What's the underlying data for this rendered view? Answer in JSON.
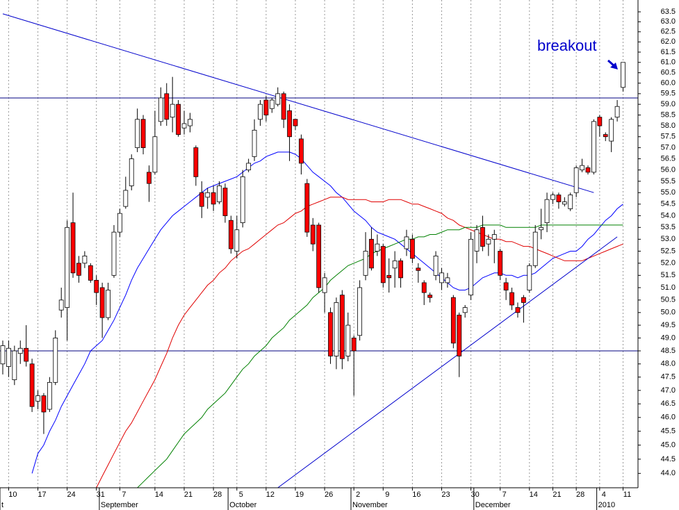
{
  "chart_data": {
    "type": "candlestick",
    "annotation": "breakout",
    "log_scale": true,
    "ylim": [
      43.5,
      64.1
    ],
    "yticks": [
      {
        "value": 44,
        "label": "44.0"
      },
      44.5,
      {
        "value": 45,
        "label": "45.0"
      },
      45.5,
      {
        "value": 46,
        "label": "46.0"
      },
      46.5,
      {
        "value": 47,
        "label": "47.0"
      },
      47.5,
      {
        "value": 48,
        "label": "48.0"
      },
      48.5,
      {
        "value": 49,
        "label": "49.0"
      },
      49.5,
      {
        "value": 50,
        "label": "50.0"
      },
      50.5,
      {
        "value": 51,
        "label": "51.0"
      },
      51.5,
      {
        "value": 52,
        "label": "52.0"
      },
      52.5,
      {
        "value": 53,
        "label": "53.0"
      },
      53.5,
      {
        "value": 54,
        "label": "54.0"
      },
      54.5,
      {
        "value": 55,
        "label": "55.0"
      },
      55.5,
      {
        "value": 56,
        "label": "56.0"
      },
      56.5,
      {
        "value": 57,
        "label": "57.0"
      },
      57.5,
      {
        "value": 58,
        "label": "58.0"
      },
      58.5,
      {
        "value": 59,
        "label": "59.0"
      },
      59.5,
      {
        "value": 60,
        "label": "60.0"
      },
      60.5,
      {
        "value": 61,
        "label": "61.0"
      },
      61.5,
      {
        "value": 62,
        "label": "62.0"
      },
      62.5,
      {
        "value": 63,
        "label": "63.0"
      },
      63.5
    ],
    "categories": [
      null,
      "10",
      null,
      null,
      null,
      null,
      "17",
      null,
      null,
      null,
      null,
      "24",
      null,
      null,
      null,
      null,
      "31",
      null,
      null,
      null,
      "7",
      null,
      null,
      null,
      null,
      null,
      "14",
      null,
      null,
      null,
      null,
      "21",
      null,
      null,
      null,
      null,
      "28",
      null,
      null,
      null,
      "5",
      null,
      null,
      null,
      null,
      "12",
      null,
      null,
      null,
      null,
      "19",
      null,
      null,
      null,
      null,
      "26",
      null,
      null,
      null,
      null,
      "2",
      null,
      null,
      null,
      null,
      "9",
      null,
      null,
      null,
      null,
      "16",
      null,
      null,
      null,
      null,
      "23",
      null,
      null,
      null,
      null,
      "30",
      null,
      null,
      null,
      null,
      "7",
      null,
      null,
      null,
      null,
      "14",
      null,
      null,
      null,
      "21",
      null,
      null,
      null,
      "28",
      null,
      null,
      null,
      "4",
      null,
      null,
      null,
      "11"
    ],
    "month_labels": [
      "t",
      null,
      null,
      null,
      null,
      null,
      null,
      null,
      null,
      null,
      null,
      null,
      null,
      null,
      null,
      null,
      null,
      "September",
      null,
      null,
      null,
      null,
      null,
      null,
      null,
      null,
      null,
      null,
      null,
      null,
      null,
      null,
      null,
      null,
      null,
      null,
      null,
      null,
      null,
      "October",
      null,
      null,
      null,
      null,
      null,
      null,
      null,
      null,
      null,
      null,
      null,
      null,
      null,
      null,
      null,
      null,
      null,
      null,
      null,
      null,
      "November",
      null,
      null,
      null,
      null,
      null,
      null,
      null,
      null,
      null,
      null,
      null,
      null,
      null,
      null,
      null,
      null,
      null,
      null,
      null,
      null,
      "December",
      null,
      null,
      null,
      null,
      null,
      null,
      null,
      null,
      null,
      null,
      null,
      null,
      null,
      null,
      null,
      null,
      null,
      null,
      null,
      null,
      "2010",
      null,
      null,
      null,
      null
    ],
    "open": [
      48.0,
      47.9,
      47.4,
      48.4,
      48.6,
      48.0,
      46.6,
      46.8,
      46.3,
      47.3,
      50.1,
      50.2,
      53.7,
      52.0,
      52.0,
      51.9,
      51.3,
      51.0,
      49.8,
      51.5,
      53.3,
      54.4,
      55.3,
      57.0,
      58.3,
      55.9,
      55.9,
      58.2,
      59.5,
      58.4,
      59.0,
      57.9,
      58.0,
      57.0,
      55.0,
      54.8,
      55.0,
      54.6,
      55.2,
      53.8,
      52.5,
      53.7,
      56.0,
      56.6,
      58.3,
      59.2,
      58.8,
      59.0,
      59.5,
      58.7,
      58.3,
      57.4,
      55.4,
      53.6,
      53.6,
      50.8,
      50.0,
      48.3,
      50.7,
      48.3,
      49.0,
      49.1,
      51.5,
      53.0,
      52.5,
      52.7,
      51.5,
      51.8,
      52.1,
      52.6,
      53.0,
      51.8,
      51.2,
      50.7,
      51.5,
      51.2,
      51.2,
      50.6,
      49.9,
      50.0,
      50.7,
      52.5,
      53.5,
      52.8,
      53.0,
      52.5,
      51.2,
      50.8,
      50.2,
      50.6,
      50.9,
      51.9,
      53.4,
      53.7,
      54.7,
      54.9,
      54.5,
      54.3,
      55.0,
      56.0,
      56.1,
      55.9,
      58.4,
      57.6,
      57.3,
      58.4,
      59.8
    ],
    "high": [
      48.9,
      48.9,
      48.7,
      48.9,
      49.5,
      48.2,
      47.0,
      46.9,
      47.5,
      49.3,
      51.0,
      53.8,
      55.0,
      52.3,
      52.5,
      52.0,
      51.5,
      51.2,
      51.2,
      53.6,
      54.3,
      55.7,
      56.7,
      58.8,
      58.5,
      56.2,
      58.7,
      59.8,
      60.0,
      60.3,
      59.2,
      58.7,
      58.6,
      57.1,
      55.5,
      55.2,
      55.3,
      55.5,
      55.4,
      54.0,
      54.0,
      56.0,
      56.5,
      58.3,
      59.2,
      59.4,
      59.3,
      59.8,
      59.6,
      59.0,
      58.3,
      57.6,
      55.6,
      53.9,
      53.7,
      51.6,
      50.2,
      50.6,
      50.9,
      50.0,
      49.1,
      51.3,
      53.3,
      53.5,
      53.2,
      52.8,
      52.2,
      52.5,
      52.2,
      53.4,
      53.2,
      52.0,
      51.3,
      50.8,
      52.5,
      51.8,
      51.6,
      50.7,
      50.0,
      50.3,
      53.3,
      53.6,
      54.0,
      53.2,
      53.4,
      52.6,
      51.4,
      51.0,
      50.4,
      50.7,
      52.0,
      53.6,
      54.3,
      55.0,
      55.0,
      55.0,
      54.8,
      55.0,
      56.2,
      56.5,
      56.2,
      58.3,
      58.5,
      57.7,
      58.4,
      59.2,
      61.0
    ],
    "low": [
      47.6,
      47.5,
      47.2,
      48.0,
      47.9,
      46.2,
      46.3,
      45.4,
      46.2,
      47.2,
      49.8,
      48.9,
      51.4,
      51.2,
      51.8,
      51.2,
      50.3,
      49.0,
      49.7,
      51.4,
      53.1,
      54.3,
      55.1,
      56.8,
      56.7,
      54.6,
      55.8,
      58.0,
      58.0,
      57.7,
      57.5,
      57.6,
      57.7,
      55.3,
      53.9,
      54.3,
      54.2,
      54.5,
      53.7,
      52.4,
      52.2,
      53.5,
      55.9,
      56.4,
      58.0,
      58.2,
      58.6,
      58.9,
      57.9,
      56.4,
      57.8,
      55.8,
      53.1,
      52.5,
      50.8,
      50.0,
      48.0,
      47.8,
      47.8,
      48.1,
      46.8,
      48.9,
      51.3,
      51.7,
      52.3,
      51.0,
      50.8,
      51.0,
      51.0,
      52.3,
      52.0,
      51.2,
      50.3,
      50.4,
      51.3,
      50.9,
      51.0,
      48.6,
      47.5,
      49.8,
      50.5,
      52.0,
      52.5,
      52.3,
      52.0,
      51.3,
      50.5,
      50.1,
      49.8,
      49.6,
      50.8,
      51.8,
      53.0,
      53.3,
      54.5,
      54.3,
      54.4,
      54.2,
      54.8,
      55.9,
      55.8,
      55.8,
      57.5,
      57.3,
      56.8,
      58.2,
      59.6
    ],
    "close": [
      48.7,
      48.6,
      48.5,
      48.6,
      48.1,
      46.4,
      46.8,
      46.2,
      47.3,
      49.0,
      50.5,
      53.5,
      51.6,
      51.5,
      52.3,
      51.3,
      50.8,
      49.8,
      50.9,
      53.3,
      54.1,
      55.1,
      56.5,
      58.3,
      57.0,
      55.4,
      57.5,
      59.3,
      58.3,
      59.0,
      57.6,
      58.1,
      58.3,
      55.7,
      54.4,
      55.0,
      54.5,
      55.3,
      54.0,
      52.6,
      53.4,
      55.7,
      56.3,
      57.8,
      59.0,
      58.5,
      59.2,
      59.5,
      58.3,
      57.5,
      58.0,
      56.3,
      53.3,
      52.8,
      51.0,
      51.4,
      48.3,
      50.4,
      48.2,
      49.5,
      48.5,
      51.0,
      52.5,
      51.8,
      52.8,
      51.2,
      51.4,
      52.1,
      51.4,
      53.1,
      52.2,
      51.7,
      50.8,
      50.6,
      52.3,
      51.6,
      51.4,
      48.8,
      48.3,
      50.2,
      53.0,
      53.4,
      52.7,
      53.0,
      53.2,
      51.5,
      50.9,
      50.3,
      50.0,
      50.4,
      51.9,
      53.3,
      53.5,
      54.7,
      54.9,
      54.6,
      54.6,
      54.9,
      56.1,
      56.2,
      55.9,
      58.2,
      58.0,
      57.5,
      58.3,
      58.9,
      61.0
    ],
    "up_color": "#ffffff",
    "down_color": "#ff0000",
    "series": [
      {
        "color": "#0000ff",
        "values": [
          null,
          null,
          null,
          null,
          null,
          44.0,
          44.7,
          45.0,
          45.5,
          45.9,
          46.4,
          46.8,
          47.2,
          47.6,
          48.0,
          48.5,
          48.7,
          48.9,
          49.3,
          49.7,
          50.2,
          50.7,
          51.3,
          51.8,
          52.2,
          52.6,
          53.0,
          53.4,
          53.7,
          54.0,
          54.2,
          54.4,
          54.6,
          54.8,
          55.0,
          55.2,
          55.3,
          55.4,
          55.5,
          55.6,
          55.7,
          55.9,
          56.1,
          56.3,
          56.4,
          56.6,
          56.7,
          56.8,
          56.8,
          56.8,
          56.7,
          56.5,
          56.2,
          55.9,
          55.7,
          55.5,
          55.3,
          55.0,
          54.8,
          54.5,
          54.2,
          54.0,
          53.8,
          53.5,
          53.3,
          53.2,
          53.1,
          53.0,
          52.8,
          52.6,
          52.4,
          52.2,
          52.0,
          51.8,
          51.6,
          51.4,
          51.2,
          51.0,
          50.9,
          50.9,
          51.0,
          51.2,
          51.4,
          51.5,
          51.6,
          51.6,
          51.5,
          51.5,
          51.4,
          51.5,
          51.5,
          51.6,
          51.8,
          52.0,
          52.2,
          52.3,
          52.4,
          52.5,
          52.5,
          52.7,
          53.0,
          53.2,
          53.5,
          53.8,
          54.0,
          54.3,
          54.5
        ]
      },
      {
        "color": "#e00000",
        "values": [
          null,
          null,
          null,
          null,
          null,
          null,
          null,
          null,
          null,
          null,
          null,
          null,
          null,
          null,
          null,
          null,
          43.5,
          43.9,
          44.3,
          44.7,
          45.1,
          45.5,
          45.8,
          46.2,
          46.6,
          47.0,
          47.4,
          47.9,
          48.4,
          49.0,
          49.5,
          49.9,
          50.2,
          50.5,
          50.8,
          51.1,
          51.3,
          51.6,
          51.8,
          52.1,
          52.3,
          52.5,
          52.6,
          52.8,
          53.0,
          53.2,
          53.4,
          53.6,
          53.7,
          53.9,
          54.1,
          54.2,
          54.4,
          54.5,
          54.6,
          54.7,
          54.8,
          54.8,
          54.8,
          54.7,
          54.7,
          54.7,
          54.7,
          54.6,
          54.6,
          54.6,
          54.7,
          54.7,
          54.7,
          54.6,
          54.5,
          54.5,
          54.4,
          54.3,
          54.2,
          54.1,
          53.9,
          53.8,
          53.6,
          53.5,
          53.4,
          53.3,
          53.2,
          53.1,
          53.0,
          53.0,
          52.9,
          52.9,
          52.8,
          52.7,
          52.7,
          52.6,
          52.5,
          52.4,
          52.3,
          52.2,
          52.1,
          52.1,
          52.1,
          52.1,
          52.2,
          52.3,
          52.4,
          52.5,
          52.6,
          52.7,
          52.8
        ]
      },
      {
        "color": "#008000",
        "values": [
          null,
          null,
          null,
          null,
          null,
          null,
          null,
          null,
          null,
          null,
          null,
          null,
          null,
          null,
          null,
          null,
          null,
          null,
          null,
          null,
          null,
          null,
          null,
          43.5,
          43.7,
          43.9,
          44.1,
          44.3,
          44.5,
          44.8,
          45.1,
          45.4,
          45.6,
          45.8,
          46.0,
          46.3,
          46.5,
          46.7,
          46.9,
          47.2,
          47.5,
          47.8,
          48.0,
          48.3,
          48.5,
          48.7,
          49.0,
          49.2,
          49.4,
          49.7,
          49.9,
          50.1,
          50.3,
          50.6,
          50.8,
          51.0,
          51.3,
          51.5,
          51.7,
          51.9,
          52.0,
          52.1,
          52.2,
          52.4,
          52.5,
          52.6,
          52.7,
          52.8,
          52.9,
          53.0,
          53.0,
          53.1,
          53.1,
          53.2,
          53.2,
          53.3,
          53.4,
          53.4,
          53.4,
          53.5,
          53.5,
          53.5,
          53.6,
          53.6,
          53.6,
          53.6,
          53.5,
          53.5,
          53.5,
          53.5,
          53.5,
          53.5,
          53.6,
          53.6,
          53.6,
          53.6,
          53.6,
          53.6,
          53.6,
          53.6,
          53.6,
          53.6,
          53.6,
          53.6,
          53.6,
          53.6,
          53.6
        ]
      }
    ],
    "trendlines": [
      {
        "color": "#0000cc",
        "x": [
          0,
          101
        ],
        "values": [
          63.4,
          55.0
        ]
      },
      {
        "color": "#0000cc",
        "x": [
          47,
          105
        ],
        "values": [
          43.5,
          53.1
        ]
      }
    ],
    "hlines": [
      59.3,
      48.5
    ],
    "hline_color": "#000080"
  }
}
